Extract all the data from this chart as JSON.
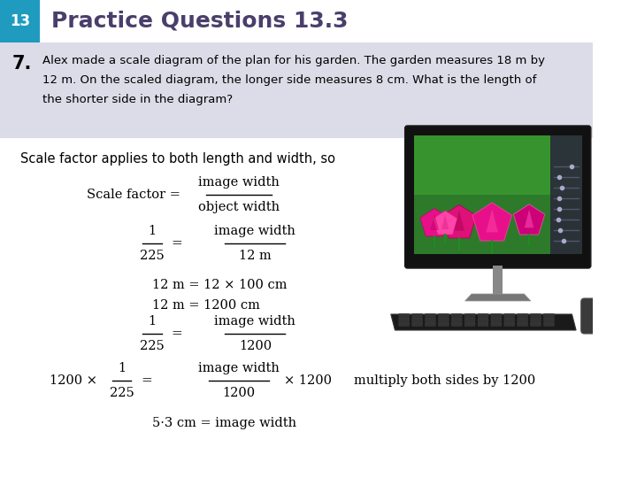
{
  "title_number": "13",
  "title_text": "Practice Questions 13.3",
  "title_bg_color": "#1e9bbf",
  "title_text_color": "#4a3f6b",
  "question_number": "7.",
  "question_line1": "Alex made a scale diagram of the plan for his garden. The garden measures 18 m by",
  "question_line2": "12 m. On the scaled diagram, the longer side measures 8 cm. What is the length of",
  "question_line3": "the shorter side in the diagram?",
  "question_bg_color": "#dcdce8",
  "body_bg_color": "#ffffff",
  "intro_text": "Scale factor applies to both length and width, so",
  "line6_annotation": "multiply both sides by 1200",
  "line7": "5·3 cm = image width",
  "text_color": "#000000"
}
